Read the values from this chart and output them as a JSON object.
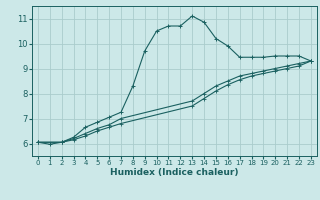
{
  "xlabel": "Humidex (Indice chaleur)",
  "xlim": [
    -0.5,
    23.5
  ],
  "ylim": [
    5.5,
    11.5
  ],
  "yticks": [
    6,
    7,
    8,
    9,
    10,
    11
  ],
  "xticks": [
    0,
    1,
    2,
    3,
    4,
    5,
    6,
    7,
    8,
    9,
    10,
    11,
    12,
    13,
    14,
    15,
    16,
    17,
    18,
    19,
    20,
    21,
    22,
    23
  ],
  "bg_color": "#cce8e8",
  "grid_color": "#aacccc",
  "line_color": "#1a6060",
  "curve1_x": [
    0,
    1,
    2,
    3,
    4,
    5,
    6,
    7,
    8,
    9,
    10,
    11,
    12,
    13,
    14,
    15,
    16,
    17,
    18,
    19,
    20,
    21,
    22,
    23
  ],
  "curve1_y": [
    6.05,
    5.97,
    6.05,
    6.25,
    6.65,
    6.85,
    7.05,
    7.25,
    8.3,
    9.7,
    10.5,
    10.7,
    10.7,
    11.1,
    10.85,
    10.2,
    9.9,
    9.45,
    9.45,
    9.45,
    9.5,
    9.5,
    9.5,
    9.3
  ],
  "curve2_x": [
    0,
    2,
    3,
    4,
    5,
    6,
    7,
    13,
    14,
    15,
    16,
    17,
    18,
    19,
    20,
    21,
    22,
    23
  ],
  "curve2_y": [
    6.05,
    6.05,
    6.2,
    6.4,
    6.6,
    6.75,
    7.0,
    7.7,
    8.0,
    8.3,
    8.5,
    8.7,
    8.8,
    8.9,
    9.0,
    9.1,
    9.2,
    9.3
  ],
  "curve3_x": [
    0,
    2,
    3,
    4,
    5,
    6,
    7,
    13,
    14,
    15,
    16,
    17,
    18,
    19,
    20,
    21,
    22,
    23
  ],
  "curve3_y": [
    6.05,
    6.05,
    6.15,
    6.3,
    6.5,
    6.65,
    6.8,
    7.5,
    7.8,
    8.1,
    8.35,
    8.55,
    8.7,
    8.8,
    8.9,
    9.0,
    9.1,
    9.3
  ]
}
